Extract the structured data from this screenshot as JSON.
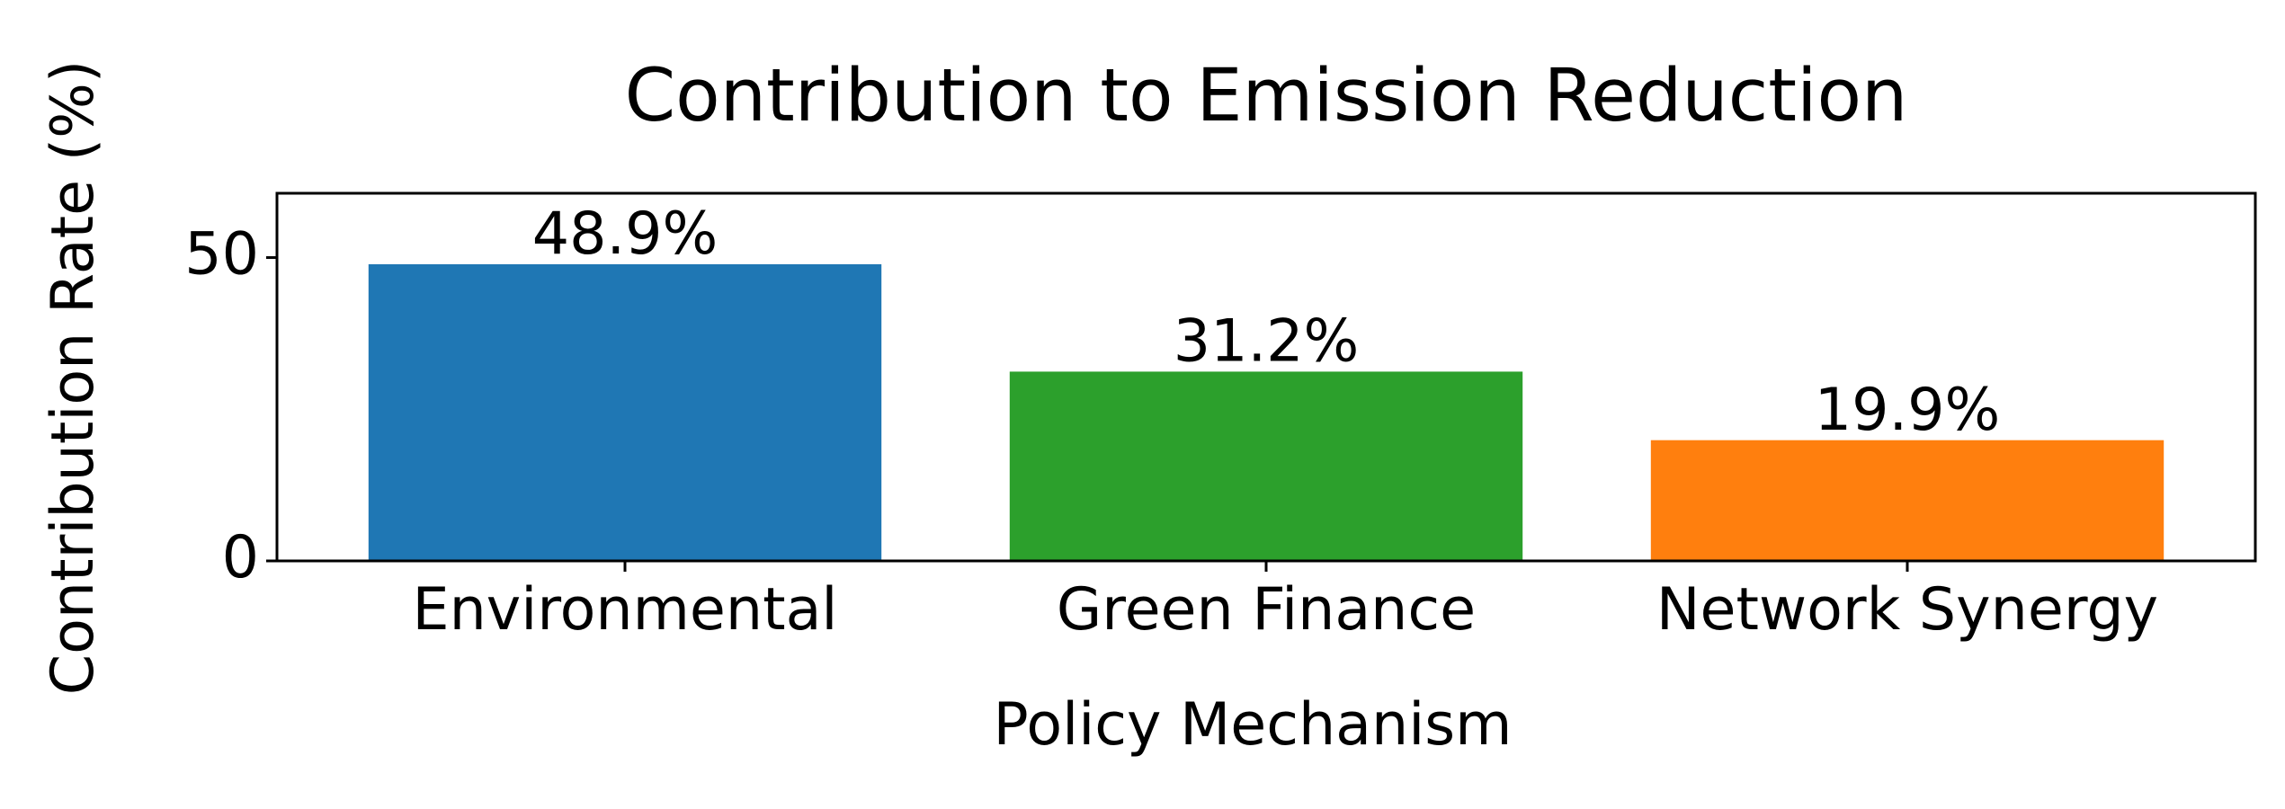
{
  "chart_data": {
    "type": "bar",
    "title": "Contribution to Emission Reduction",
    "x_label": "Policy Mechanism",
    "y_label": "Contribution Rate (%)",
    "categories": [
      "Environmental",
      "Green Finance",
      "Network Synergy"
    ],
    "values": [
      48.9,
      31.2,
      19.9
    ],
    "value_labels": [
      "48.9%",
      "31.2%",
      "19.9%"
    ],
    "colors": [
      "#1f77b4",
      "#2ca02c",
      "#ff7f0e"
    ],
    "ylim": [
      0,
      60.6
    ],
    "yticks": [
      0,
      50
    ],
    "grid": false
  }
}
